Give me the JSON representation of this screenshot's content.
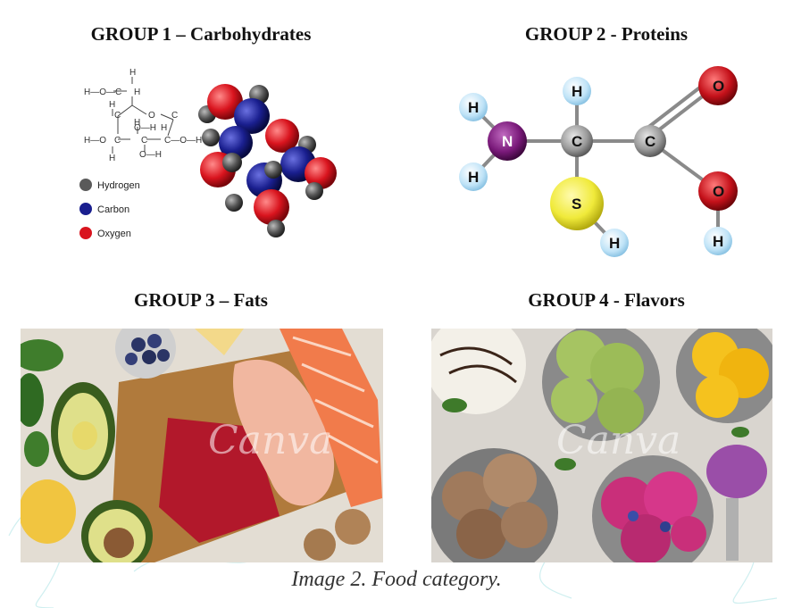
{
  "groups": [
    {
      "heading": "GROUP 1 – Carbohydrates"
    },
    {
      "heading": "GROUP 2 - Proteins"
    },
    {
      "heading": "GROUP 3 – Fats"
    },
    {
      "heading": "GROUP 4 - Flavors"
    }
  ],
  "carb_legend": [
    "Hydrogen",
    "Carbon",
    "Oxygen"
  ],
  "carb_formula": {
    "h": "H",
    "o": "O",
    "c": "C",
    "ho_c": "H—O—C",
    "o_h": "O—H",
    "ho": "H—O",
    "c_oh": "C—O—H"
  },
  "protein_atoms": {
    "n": "N",
    "c": "C",
    "s": "S",
    "o": "O",
    "h": "H"
  },
  "watermark": "Canva",
  "caption": "Image 2. Food category.",
  "colors": {
    "hydrogen": "#5a5a5a",
    "carbon": "#1a1f8f",
    "oxygen": "#d9141e",
    "protein_h": "#bfe3f7",
    "protein_n": "#7a1a7a",
    "protein_c": "#9a9a9a",
    "protein_s": "#f0ea3a",
    "protein_o": "#c4111a"
  }
}
